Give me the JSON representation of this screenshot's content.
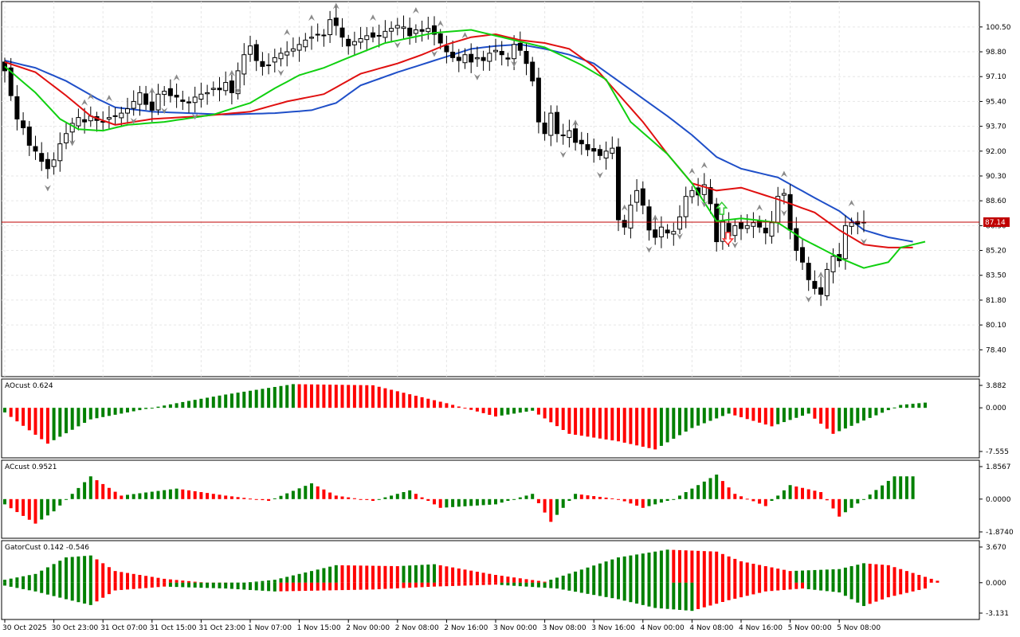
{
  "colors": {
    "bull": "#008000",
    "bear": "#ff0000",
    "jaw": "#1f4fc8",
    "teeth": "#e01010",
    "lips": "#10d010",
    "price_line": "#c00000",
    "grid": "#e6e6e6",
    "fractal": "#8a8a8a"
  },
  "price_panel": {
    "current_price": "87.14",
    "current_price_value": 87.14,
    "ylim": [
      77.0,
      101.8
    ],
    "yticks": [
      "100.50",
      "98.80",
      "97.10",
      "95.40",
      "93.70",
      "92.00",
      "90.30",
      "88.60",
      "86.90",
      "85.20",
      "83.50",
      "81.80",
      "80.10",
      "78.40"
    ],
    "signal_arrows": [
      {
        "label": "up-arrow",
        "bar": 114,
        "color": "#33cc33"
      },
      {
        "label": "down-arrow",
        "bar": 115,
        "color": "#ff3333"
      }
    ]
  },
  "ao_panel": {
    "title": "AOcust 0.624",
    "yticks": [
      "3.882",
      "0.000",
      "-7.555"
    ],
    "ylim": [
      -7.555,
      3.882
    ]
  },
  "ac_panel": {
    "title": "ACcust 0.9521",
    "yticks": [
      "1.8567",
      "0.0000",
      "-1.8740"
    ],
    "ylim": [
      -1.874,
      1.8567
    ]
  },
  "gator_panel": {
    "title": "GatorCust 0.142 -0.546",
    "yticks": [
      "3.670",
      "0.000",
      "-3.131"
    ],
    "ylim": [
      -3.131,
      3.67
    ]
  },
  "x_axis": {
    "labels": [
      "30 Oct 2025",
      "30 Oct 23:00",
      "31 Oct 07:00",
      "31 Oct 15:00",
      "31 Oct 23:00",
      "1 Nov 07:00",
      "1 Nov 15:00",
      "2 Nov 00:00",
      "2 Nov 08:00",
      "2 Nov 16:00",
      "3 Nov 00:00",
      "3 Nov 08:00",
      "3 Nov 16:00",
      "4 Nov 00:00",
      "4 Nov 08:00",
      "4 Nov 16:00",
      "5 Nov 00:00",
      "5 Nov 08:00"
    ],
    "label_bars": [
      0,
      8,
      16,
      24,
      32,
      40,
      48,
      56,
      64,
      72,
      80,
      88,
      96,
      104,
      112,
      120,
      128,
      136
    ]
  },
  "chart_data": {
    "type": "candlestick",
    "close_anchors": [
      [
        0,
        97.5
      ],
      [
        1,
        95.8
      ],
      [
        2,
        94.2
      ],
      [
        3,
        93.6
      ],
      [
        4,
        92.4
      ],
      [
        5,
        92.0
      ],
      [
        6,
        91.3
      ],
      [
        7,
        90.8
      ],
      [
        8,
        91.4
      ],
      [
        9,
        92.5
      ],
      [
        10,
        93.2
      ],
      [
        11,
        93.9
      ],
      [
        12,
        94.3
      ],
      [
        13,
        94.0
      ],
      [
        14,
        94.4
      ],
      [
        15,
        94.1
      ],
      [
        16,
        94.0
      ],
      [
        17,
        94.3
      ],
      [
        18,
        94.4
      ],
      [
        19,
        94.6
      ],
      [
        20,
        94.9
      ],
      [
        21,
        95.4
      ],
      [
        22,
        96.0
      ],
      [
        23,
        95.2
      ],
      [
        24,
        94.8
      ],
      [
        25,
        95.9
      ],
      [
        26,
        96.1
      ],
      [
        27,
        95.8
      ],
      [
        28,
        95.7
      ],
      [
        29,
        95.4
      ],
      [
        30,
        95.3
      ],
      [
        31,
        95.7
      ],
      [
        32,
        95.9
      ],
      [
        33,
        96.0
      ],
      [
        34,
        96.3
      ],
      [
        35,
        96.2
      ],
      [
        36,
        96.7
      ],
      [
        37,
        96.0
      ],
      [
        38,
        97.5
      ],
      [
        39,
        98.6
      ],
      [
        40,
        99.2
      ],
      [
        41,
        98.2
      ],
      [
        42,
        97.8
      ],
      [
        43,
        97.9
      ],
      [
        44,
        98.4
      ],
      [
        45,
        98.7
      ],
      [
        46,
        98.8
      ],
      [
        47,
        99.0
      ],
      [
        48,
        99.3
      ],
      [
        49,
        99.6
      ],
      [
        50,
        99.8
      ],
      [
        51,
        100.0
      ],
      [
        52,
        99.9
      ],
      [
        53,
        101.0
      ],
      [
        54,
        100.6
      ],
      [
        55,
        99.8
      ],
      [
        56,
        99.2
      ],
      [
        57,
        99.5
      ],
      [
        58,
        99.7
      ],
      [
        59,
        99.9
      ],
      [
        60,
        99.8
      ],
      [
        61,
        99.9
      ],
      [
        62,
        100.2
      ],
      [
        63,
        100.4
      ],
      [
        64,
        100.6
      ],
      [
        65,
        100.5
      ],
      [
        66,
        99.9
      ],
      [
        67,
        100.3
      ],
      [
        68,
        100.2
      ],
      [
        69,
        100.4
      ],
      [
        70,
        100.0
      ],
      [
        71,
        99.4
      ],
      [
        72,
        98.8
      ],
      [
        73,
        98.4
      ],
      [
        74,
        98.2
      ],
      [
        75,
        98.6
      ],
      [
        76,
        98.1
      ],
      [
        77,
        98.4
      ],
      [
        78,
        98.2
      ],
      [
        79,
        98.7
      ],
      [
        80,
        98.9
      ],
      [
        81,
        98.6
      ],
      [
        82,
        98.3
      ],
      [
        83,
        99.3
      ],
      [
        84,
        98.9
      ],
      [
        85,
        98.0
      ],
      [
        86,
        96.8
      ],
      [
        87,
        94.0
      ],
      [
        88,
        93.2
      ],
      [
        89,
        94.6
      ],
      [
        90,
        93.2
      ],
      [
        91,
        93.1
      ],
      [
        92,
        93.4
      ],
      [
        93,
        92.6
      ],
      [
        94,
        92.5
      ],
      [
        95,
        92.1
      ],
      [
        96,
        92.0
      ],
      [
        97,
        91.7
      ],
      [
        98,
        92.0
      ],
      [
        99,
        92.2
      ],
      [
        100,
        87.3
      ],
      [
        101,
        86.8
      ],
      [
        102,
        88.3
      ],
      [
        103,
        89.3
      ],
      [
        104,
        88.3
      ],
      [
        105,
        86.6
      ],
      [
        106,
        86.1
      ],
      [
        107,
        86.8
      ],
      [
        108,
        86.4
      ],
      [
        109,
        86.5
      ],
      [
        110,
        87.5
      ],
      [
        111,
        88.9
      ],
      [
        112,
        89.3
      ],
      [
        113,
        89.0
      ],
      [
        114,
        89.7
      ],
      [
        115,
        88.4
      ],
      [
        116,
        85.8
      ],
      [
        117,
        87.2
      ],
      [
        118,
        86.2
      ],
      [
        119,
        86.9
      ],
      [
        120,
        86.7
      ],
      [
        121,
        86.9
      ],
      [
        122,
        87.1
      ],
      [
        123,
        86.8
      ],
      [
        124,
        86.4
      ],
      [
        125,
        87.1
      ],
      [
        126,
        88.9
      ],
      [
        127,
        89.1
      ],
      [
        128,
        86.6
      ],
      [
        129,
        85.2
      ],
      [
        130,
        84.4
      ],
      [
        131,
        83.2
      ],
      [
        132,
        82.6
      ],
      [
        133,
        82.2
      ],
      [
        134,
        83.9
      ],
      [
        135,
        84.8
      ],
      [
        136,
        84.5
      ],
      [
        137,
        86.9
      ],
      [
        138,
        87.1
      ],
      [
        139,
        87.0
      ],
      [
        140,
        87.14
      ]
    ],
    "ao_anchors": [
      [
        0,
        -0.8
      ],
      [
        7,
        -6.2
      ],
      [
        14,
        -2.0
      ],
      [
        24,
        0.0
      ],
      [
        30,
        1.2
      ],
      [
        36,
        2.3
      ],
      [
        47,
        4.1
      ],
      [
        60,
        3.9
      ],
      [
        72,
        0.8
      ],
      [
        80,
        -1.5
      ],
      [
        86,
        -0.5
      ],
      [
        92,
        -4.5
      ],
      [
        100,
        -5.8
      ],
      [
        106,
        -7.2
      ],
      [
        112,
        -3.5
      ],
      [
        118,
        -1.0
      ],
      [
        125,
        -3.2
      ],
      [
        131,
        -1.0
      ],
      [
        135,
        -4.5
      ],
      [
        140,
        -2.2
      ],
      [
        146,
        0.5
      ],
      [
        150,
        0.9
      ]
    ],
    "ac_anchors": [
      [
        0,
        -0.3
      ],
      [
        5,
        -1.4
      ],
      [
        8,
        -0.7
      ],
      [
        14,
        1.3
      ],
      [
        19,
        0.2
      ],
      [
        28,
        0.6
      ],
      [
        36,
        0.2
      ],
      [
        43,
        -0.1
      ],
      [
        50,
        0.9
      ],
      [
        54,
        0.2
      ],
      [
        60,
        -0.1
      ],
      [
        66,
        0.5
      ],
      [
        71,
        -0.5
      ],
      [
        80,
        -0.3
      ],
      [
        86,
        0.3
      ],
      [
        89,
        -1.3
      ],
      [
        93,
        0.3
      ],
      [
        100,
        0.0
      ],
      [
        104,
        -0.5
      ],
      [
        109,
        0.0
      ],
      [
        116,
        1.4
      ],
      [
        119,
        0.3
      ],
      [
        124,
        -0.4
      ],
      [
        128,
        0.8
      ],
      [
        133,
        0.4
      ],
      [
        136,
        -1.0
      ],
      [
        140,
        0.0
      ],
      [
        145,
        1.3
      ],
      [
        148,
        1.3
      ]
    ],
    "gator_up_anchors": [
      [
        0,
        0.3
      ],
      [
        5,
        0.9
      ],
      [
        10,
        2.6
      ],
      [
        14,
        2.8
      ],
      [
        18,
        1.2
      ],
      [
        26,
        0.4
      ],
      [
        36,
        -0.2
      ],
      [
        44,
        0.3
      ],
      [
        54,
        1.8
      ],
      [
        64,
        1.7
      ],
      [
        70,
        1.9
      ],
      [
        80,
        0.8
      ],
      [
        88,
        0.1
      ],
      [
        100,
        2.6
      ],
      [
        108,
        3.4
      ],
      [
        116,
        3.2
      ],
      [
        120,
        2.2
      ],
      [
        128,
        1.2
      ],
      [
        136,
        1.4
      ],
      [
        140,
        2.0
      ],
      [
        144,
        1.8
      ],
      [
        152,
        0.2
      ]
    ],
    "gator_down_anchors": [
      [
        0,
        -0.3
      ],
      [
        5,
        -0.9
      ],
      [
        10,
        -1.7
      ],
      [
        14,
        -2.3
      ],
      [
        18,
        -0.8
      ],
      [
        26,
        -0.4
      ],
      [
        36,
        -0.6
      ],
      [
        44,
        -0.9
      ],
      [
        52,
        -0.8
      ],
      [
        60,
        -0.7
      ],
      [
        70,
        -0.4
      ],
      [
        80,
        -0.2
      ],
      [
        90,
        -0.6
      ],
      [
        100,
        -1.7
      ],
      [
        106,
        -2.6
      ],
      [
        112,
        -2.9
      ],
      [
        118,
        -1.8
      ],
      [
        124,
        -0.9
      ],
      [
        130,
        -0.6
      ],
      [
        136,
        -1.0
      ],
      [
        140,
        -2.4
      ],
      [
        144,
        -1.5
      ],
      [
        150,
        -0.6
      ]
    ],
    "jaw_anchors": [
      [
        0,
        98.2
      ],
      [
        5,
        97.7
      ],
      [
        10,
        96.8
      ],
      [
        15,
        95.6
      ],
      [
        18,
        95.0
      ],
      [
        24,
        94.7
      ],
      [
        30,
        94.6
      ],
      [
        36,
        94.5
      ],
      [
        44,
        94.6
      ],
      [
        50,
        94.8
      ],
      [
        54,
        95.3
      ],
      [
        58,
        96.5
      ],
      [
        64,
        97.4
      ],
      [
        70,
        98.2
      ],
      [
        76,
        99.0
      ],
      [
        80,
        99.2
      ],
      [
        84,
        99.3
      ],
      [
        88,
        99.0
      ],
      [
        92,
        98.6
      ],
      [
        96,
        98.0
      ],
      [
        100,
        96.8
      ],
      [
        104,
        95.6
      ],
      [
        108,
        94.4
      ],
      [
        112,
        93.1
      ],
      [
        116,
        91.6
      ],
      [
        120,
        90.8
      ],
      [
        126,
        90.2
      ],
      [
        132,
        88.8
      ],
      [
        136,
        87.9
      ],
      [
        140,
        86.6
      ],
      [
        144,
        86.1
      ],
      [
        148,
        85.8
      ]
    ],
    "teeth_anchors": [
      [
        0,
        98.1
      ],
      [
        5,
        97.4
      ],
      [
        10,
        95.8
      ],
      [
        14,
        94.4
      ],
      [
        18,
        93.8
      ],
      [
        24,
        94.2
      ],
      [
        32,
        94.4
      ],
      [
        40,
        94.7
      ],
      [
        46,
        95.4
      ],
      [
        52,
        95.9
      ],
      [
        58,
        97.3
      ],
      [
        64,
        98.0
      ],
      [
        68,
        98.6
      ],
      [
        72,
        99.3
      ],
      [
        76,
        99.8
      ],
      [
        80,
        100.0
      ],
      [
        84,
        99.6
      ],
      [
        88,
        99.4
      ],
      [
        92,
        99.0
      ],
      [
        96,
        97.8
      ],
      [
        100,
        95.9
      ],
      [
        104,
        94.0
      ],
      [
        108,
        91.8
      ],
      [
        112,
        89.8
      ],
      [
        116,
        89.3
      ],
      [
        120,
        89.5
      ],
      [
        126,
        88.7
      ],
      [
        132,
        87.8
      ],
      [
        136,
        86.6
      ],
      [
        140,
        85.6
      ],
      [
        144,
        85.4
      ],
      [
        148,
        85.4
      ]
    ],
    "lips_anchors": [
      [
        0,
        97.8
      ],
      [
        5,
        96.0
      ],
      [
        9,
        94.2
      ],
      [
        12,
        93.5
      ],
      [
        16,
        93.4
      ],
      [
        20,
        93.8
      ],
      [
        26,
        94.0
      ],
      [
        34,
        94.5
      ],
      [
        40,
        95.3
      ],
      [
        44,
        96.3
      ],
      [
        48,
        97.2
      ],
      [
        52,
        97.7
      ],
      [
        56,
        98.4
      ],
      [
        62,
        99.4
      ],
      [
        70,
        100.1
      ],
      [
        76,
        100.3
      ],
      [
        82,
        99.7
      ],
      [
        88,
        99.1
      ],
      [
        94,
        97.9
      ],
      [
        98,
        96.9
      ],
      [
        102,
        94.0
      ],
      [
        108,
        91.8
      ],
      [
        112,
        89.8
      ],
      [
        116,
        87.2
      ],
      [
        120,
        87.4
      ],
      [
        126,
        87.1
      ],
      [
        130,
        86.0
      ],
      [
        136,
        84.7
      ],
      [
        140,
        84.0
      ],
      [
        144,
        84.4
      ],
      [
        146,
        85.4
      ],
      [
        150,
        85.8
      ]
    ],
    "fractals_up_bars": [
      13,
      14,
      17,
      24,
      28,
      37,
      46,
      50,
      54,
      60,
      67,
      71,
      75,
      93,
      101,
      106,
      112,
      114,
      123,
      127,
      133,
      138
    ],
    "fractals_down_bars": [
      7,
      11,
      21,
      26,
      31,
      38,
      45,
      64,
      70,
      77,
      83,
      91,
      97,
      105,
      110,
      114,
      119,
      127,
      131,
      140
    ],
    "future_bars": 10
  }
}
